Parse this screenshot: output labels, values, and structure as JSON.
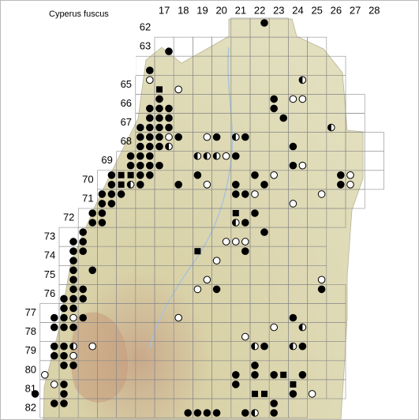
{
  "title": "Cyperus fuscus",
  "columns": [
    17,
    18,
    19,
    20,
    21,
    22,
    23,
    24,
    25,
    26,
    27,
    28
  ],
  "rows": [
    62,
    63,
    64,
    65,
    66,
    67,
    68,
    69,
    70,
    71,
    72,
    73,
    74,
    75,
    76,
    77,
    78,
    79,
    80,
    81,
    82
  ],
  "records": [
    [
      62,
      22,
      2,
      "filled"
    ],
    [
      63,
      17,
      4,
      "filled"
    ],
    [
      64,
      16,
      4,
      "filled"
    ],
    [
      65,
      16,
      2,
      "open"
    ],
    [
      65,
      17,
      3,
      "square"
    ],
    [
      65,
      18,
      3,
      "open"
    ],
    [
      65,
      24,
      2,
      "half"
    ],
    [
      66,
      17,
      1,
      "filled"
    ],
    [
      66,
      17,
      3,
      "filled"
    ],
    [
      66,
      17,
      4,
      "filled"
    ],
    [
      66,
      16,
      4,
      "filled"
    ],
    [
      66,
      23,
      1,
      "filled"
    ],
    [
      66,
      23,
      3,
      "filled"
    ],
    [
      66,
      24,
      1,
      "open"
    ],
    [
      66,
      24,
      2,
      "open"
    ],
    [
      67,
      16,
      2,
      "filled"
    ],
    [
      67,
      17,
      1,
      "filled"
    ],
    [
      67,
      17,
      2,
      "filled"
    ],
    [
      67,
      16,
      3,
      "filled"
    ],
    [
      67,
      16,
      4,
      "filled"
    ],
    [
      67,
      17,
      3,
      "filled"
    ],
    [
      67,
      17,
      4,
      "filled"
    ],
    [
      67,
      23,
      2,
      "filled"
    ],
    [
      67,
      26,
      3,
      "half"
    ],
    [
      68,
      16,
      1,
      "filled"
    ],
    [
      68,
      16,
      2,
      "filled"
    ],
    [
      68,
      17,
      1,
      "filled"
    ],
    [
      68,
      17,
      2,
      "open"
    ],
    [
      68,
      18,
      1,
      "filled"
    ],
    [
      68,
      16,
      3,
      "filled"
    ],
    [
      68,
      16,
      4,
      "filled"
    ],
    [
      68,
      17,
      3,
      "filled"
    ],
    [
      68,
      17,
      4,
      "half"
    ],
    [
      68,
      19,
      2,
      "open"
    ],
    [
      68,
      20,
      1,
      "filled"
    ],
    [
      68,
      21,
      1,
      "half"
    ],
    [
      68,
      21,
      2,
      "filled"
    ],
    [
      68,
      24,
      3,
      "filled"
    ],
    [
      69,
      15,
      2,
      "filled"
    ],
    [
      69,
      16,
      1,
      "filled"
    ],
    [
      69,
      16,
      2,
      "filled"
    ],
    [
      69,
      15,
      4,
      "filled"
    ],
    [
      69,
      16,
      3,
      "filled"
    ],
    [
      69,
      16,
      4,
      "filled"
    ],
    [
      69,
      17,
      3,
      "filled"
    ],
    [
      69,
      19,
      1,
      "half"
    ],
    [
      69,
      19,
      2,
      "half"
    ],
    [
      69,
      20,
      1,
      "half"
    ],
    [
      69,
      20,
      2,
      "open"
    ],
    [
      69,
      21,
      1,
      "filled"
    ],
    [
      69,
      24,
      3,
      "filled"
    ],
    [
      69,
      24,
      4,
      "open"
    ],
    [
      70,
      14,
      2,
      "filled"
    ],
    [
      70,
      15,
      1,
      "square"
    ],
    [
      70,
      15,
      2,
      "square"
    ],
    [
      70,
      16,
      1,
      "filled"
    ],
    [
      70,
      16,
      2,
      "filled"
    ],
    [
      70,
      14,
      4,
      "filled"
    ],
    [
      70,
      15,
      3,
      "square"
    ],
    [
      70,
      15,
      4,
      "half"
    ],
    [
      70,
      16,
      3,
      "filled"
    ],
    [
      70,
      18,
      3,
      "filled"
    ],
    [
      70,
      19,
      1,
      "filled"
    ],
    [
      70,
      19,
      4,
      "open"
    ],
    [
      70,
      21,
      3,
      "filled"
    ],
    [
      70,
      22,
      1,
      "filled"
    ],
    [
      70,
      22,
      4,
      "filled"
    ],
    [
      70,
      23,
      1,
      "open"
    ],
    [
      70,
      26,
      2,
      "filled"
    ],
    [
      70,
      27,
      1,
      "open"
    ],
    [
      70,
      26,
      4,
      "filled"
    ],
    [
      70,
      27,
      3,
      "open"
    ],
    [
      71,
      14,
      1,
      "filled"
    ],
    [
      71,
      14,
      2,
      "filled"
    ],
    [
      71,
      15,
      1,
      "filled"
    ],
    [
      71,
      14,
      3,
      "filled"
    ],
    [
      71,
      14,
      4,
      "filled"
    ],
    [
      71,
      21,
      1,
      "filled"
    ],
    [
      71,
      21,
      2,
      "filled"
    ],
    [
      71,
      22,
      1,
      "open"
    ],
    [
      71,
      24,
      3,
      "open"
    ],
    [
      71,
      25,
      2,
      "open"
    ],
    [
      72,
      13,
      2,
      "filled"
    ],
    [
      72,
      13,
      4,
      "filled"
    ],
    [
      72,
      14,
      1,
      "filled"
    ],
    [
      72,
      14,
      3,
      "filled"
    ],
    [
      72,
      21,
      1,
      "square"
    ],
    [
      72,
      21,
      3,
      "half"
    ],
    [
      72,
      21,
      4,
      "filled"
    ],
    [
      72,
      22,
      1,
      "filled"
    ],
    [
      73,
      12,
      4,
      "filled"
    ],
    [
      73,
      13,
      1,
      "filled"
    ],
    [
      73,
      13,
      3,
      "filled"
    ],
    [
      73,
      20,
      4,
      "open"
    ],
    [
      73,
      21,
      3,
      "open"
    ],
    [
      73,
      21,
      4,
      "open"
    ],
    [
      73,
      22,
      2,
      "filled"
    ],
    [
      74,
      12,
      2,
      "filled"
    ],
    [
      74,
      12,
      4,
      "filled"
    ],
    [
      74,
      13,
      1,
      "filled"
    ],
    [
      74,
      19,
      1,
      "square"
    ],
    [
      74,
      20,
      3,
      "open"
    ],
    [
      74,
      21,
      2,
      "filled"
    ],
    [
      75,
      12,
      2,
      "filled"
    ],
    [
      75,
      12,
      4,
      "filled"
    ],
    [
      75,
      13,
      2,
      "filled"
    ],
    [
      75,
      19,
      4,
      "open"
    ],
    [
      75,
      25,
      4,
      "open"
    ],
    [
      76,
      12,
      2,
      "filled"
    ],
    [
      76,
      12,
      3,
      "filled"
    ],
    [
      76,
      12,
      4,
      "filled"
    ],
    [
      76,
      13,
      1,
      "filled"
    ],
    [
      76,
      13,
      3,
      "filled"
    ],
    [
      76,
      19,
      1,
      "open"
    ],
    [
      76,
      20,
      1,
      "filled"
    ],
    [
      76,
      25,
      2,
      "filled"
    ],
    [
      77,
      12,
      1,
      "filled"
    ],
    [
      77,
      12,
      2,
      "filled"
    ],
    [
      77,
      11,
      4,
      "filled"
    ],
    [
      77,
      12,
      3,
      "filled"
    ],
    [
      77,
      12,
      4,
      "open"
    ],
    [
      77,
      13,
      3,
      "filled"
    ],
    [
      77,
      18,
      3,
      "open"
    ],
    [
      77,
      24,
      3,
      "filled"
    ],
    [
      78,
      11,
      2,
      "filled"
    ],
    [
      78,
      12,
      1,
      "filled"
    ],
    [
      78,
      12,
      2,
      "filled"
    ],
    [
      78,
      23,
      1,
      "open"
    ],
    [
      78,
      24,
      2,
      "half"
    ],
    [
      78,
      21,
      4,
      "open"
    ],
    [
      79,
      11,
      2,
      "filled"
    ],
    [
      79,
      12,
      1,
      "filled"
    ],
    [
      79,
      12,
      2,
      "half"
    ],
    [
      79,
      11,
      4,
      "filled"
    ],
    [
      79,
      12,
      3,
      "filled"
    ],
    [
      79,
      12,
      4,
      "open"
    ],
    [
      79,
      13,
      2,
      "open"
    ],
    [
      79,
      22,
      1,
      "half"
    ],
    [
      79,
      22,
      2,
      "filled"
    ],
    [
      79,
      24,
      1,
      "half"
    ],
    [
      79,
      24,
      2,
      "filled"
    ],
    [
      80,
      11,
      3,
      "open"
    ],
    [
      80,
      12,
      1,
      "filled"
    ],
    [
      80,
      12,
      2,
      "filled"
    ],
    [
      80,
      21,
      3,
      "filled"
    ],
    [
      80,
      22,
      1,
      "filled"
    ],
    [
      80,
      22,
      3,
      "filled"
    ],
    [
      80,
      23,
      3,
      "filled"
    ],
    [
      80,
      23,
      4,
      "square"
    ],
    [
      80,
      24,
      4,
      "filled"
    ],
    [
      81,
      10,
      4,
      "filled"
    ],
    [
      81,
      11,
      2,
      "open"
    ],
    [
      81,
      12,
      1,
      "filled"
    ],
    [
      81,
      12,
      3,
      "filled"
    ],
    [
      81,
      21,
      1,
      "filled"
    ],
    [
      81,
      22,
      3,
      "square"
    ],
    [
      81,
      22,
      4,
      "square"
    ],
    [
      81,
      24,
      1,
      "square"
    ],
    [
      81,
      24,
      3,
      "filled"
    ],
    [
      81,
      25,
      3,
      "open"
    ],
    [
      82,
      11,
      2,
      "filled"
    ],
    [
      82,
      12,
      1,
      "filled"
    ],
    [
      82,
      18,
      4,
      "filled"
    ],
    [
      82,
      19,
      3,
      "filled"
    ],
    [
      82,
      19,
      4,
      "filled"
    ],
    [
      82,
      20,
      3,
      "filled"
    ],
    [
      82,
      21,
      4,
      "filled"
    ],
    [
      82,
      22,
      3,
      "half"
    ],
    [
      82,
      23,
      1,
      "filled"
    ],
    [
      82,
      23,
      3,
      "filled"
    ]
  ]
}
